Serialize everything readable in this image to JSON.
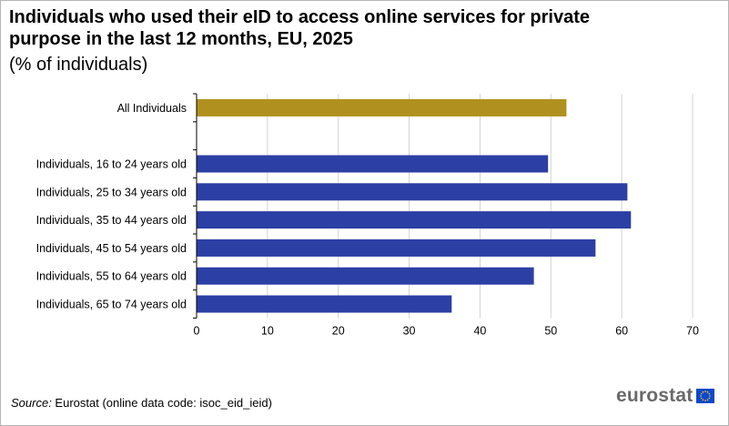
{
  "title": "Individuals who used their eID to access online services for private purpose in the last 12 months, EU, 2025",
  "subtitle": "(% of individuals)",
  "source_label": "Source:",
  "source_text": " Eurostat (online data code: isoc_eid_ieid)",
  "logo_text": "eurostat",
  "colors": {
    "highlight": "#b09120",
    "bar": "#2c3fa4",
    "grid": "#d2d2d2",
    "axis": "#000000"
  },
  "chart_data": {
    "type": "bar",
    "orientation": "horizontal",
    "title": "Individuals who used their eID to access online services for private purpose in the last 12 months, EU, 2025",
    "xlabel": "",
    "ylabel": "",
    "xlim": [
      0,
      70
    ],
    "xticks": [
      0,
      10,
      20,
      30,
      40,
      50,
      60,
      70
    ],
    "grid": true,
    "legend": "none",
    "categories": [
      "All Individuals",
      "",
      "Individuals, 16 to 24 years old",
      "Individuals, 25 to 34 years old",
      "Individuals, 35 to 44 years old",
      "Individuals, 45 to 54 years old",
      "Individuals, 55 to 64 years old",
      "Individuals, 65 to 74 years old"
    ],
    "values": [
      52.2,
      null,
      49.6,
      60.8,
      61.3,
      56.3,
      47.6,
      36.0
    ],
    "highlight": [
      true,
      false,
      false,
      false,
      false,
      false,
      false,
      false
    ]
  }
}
